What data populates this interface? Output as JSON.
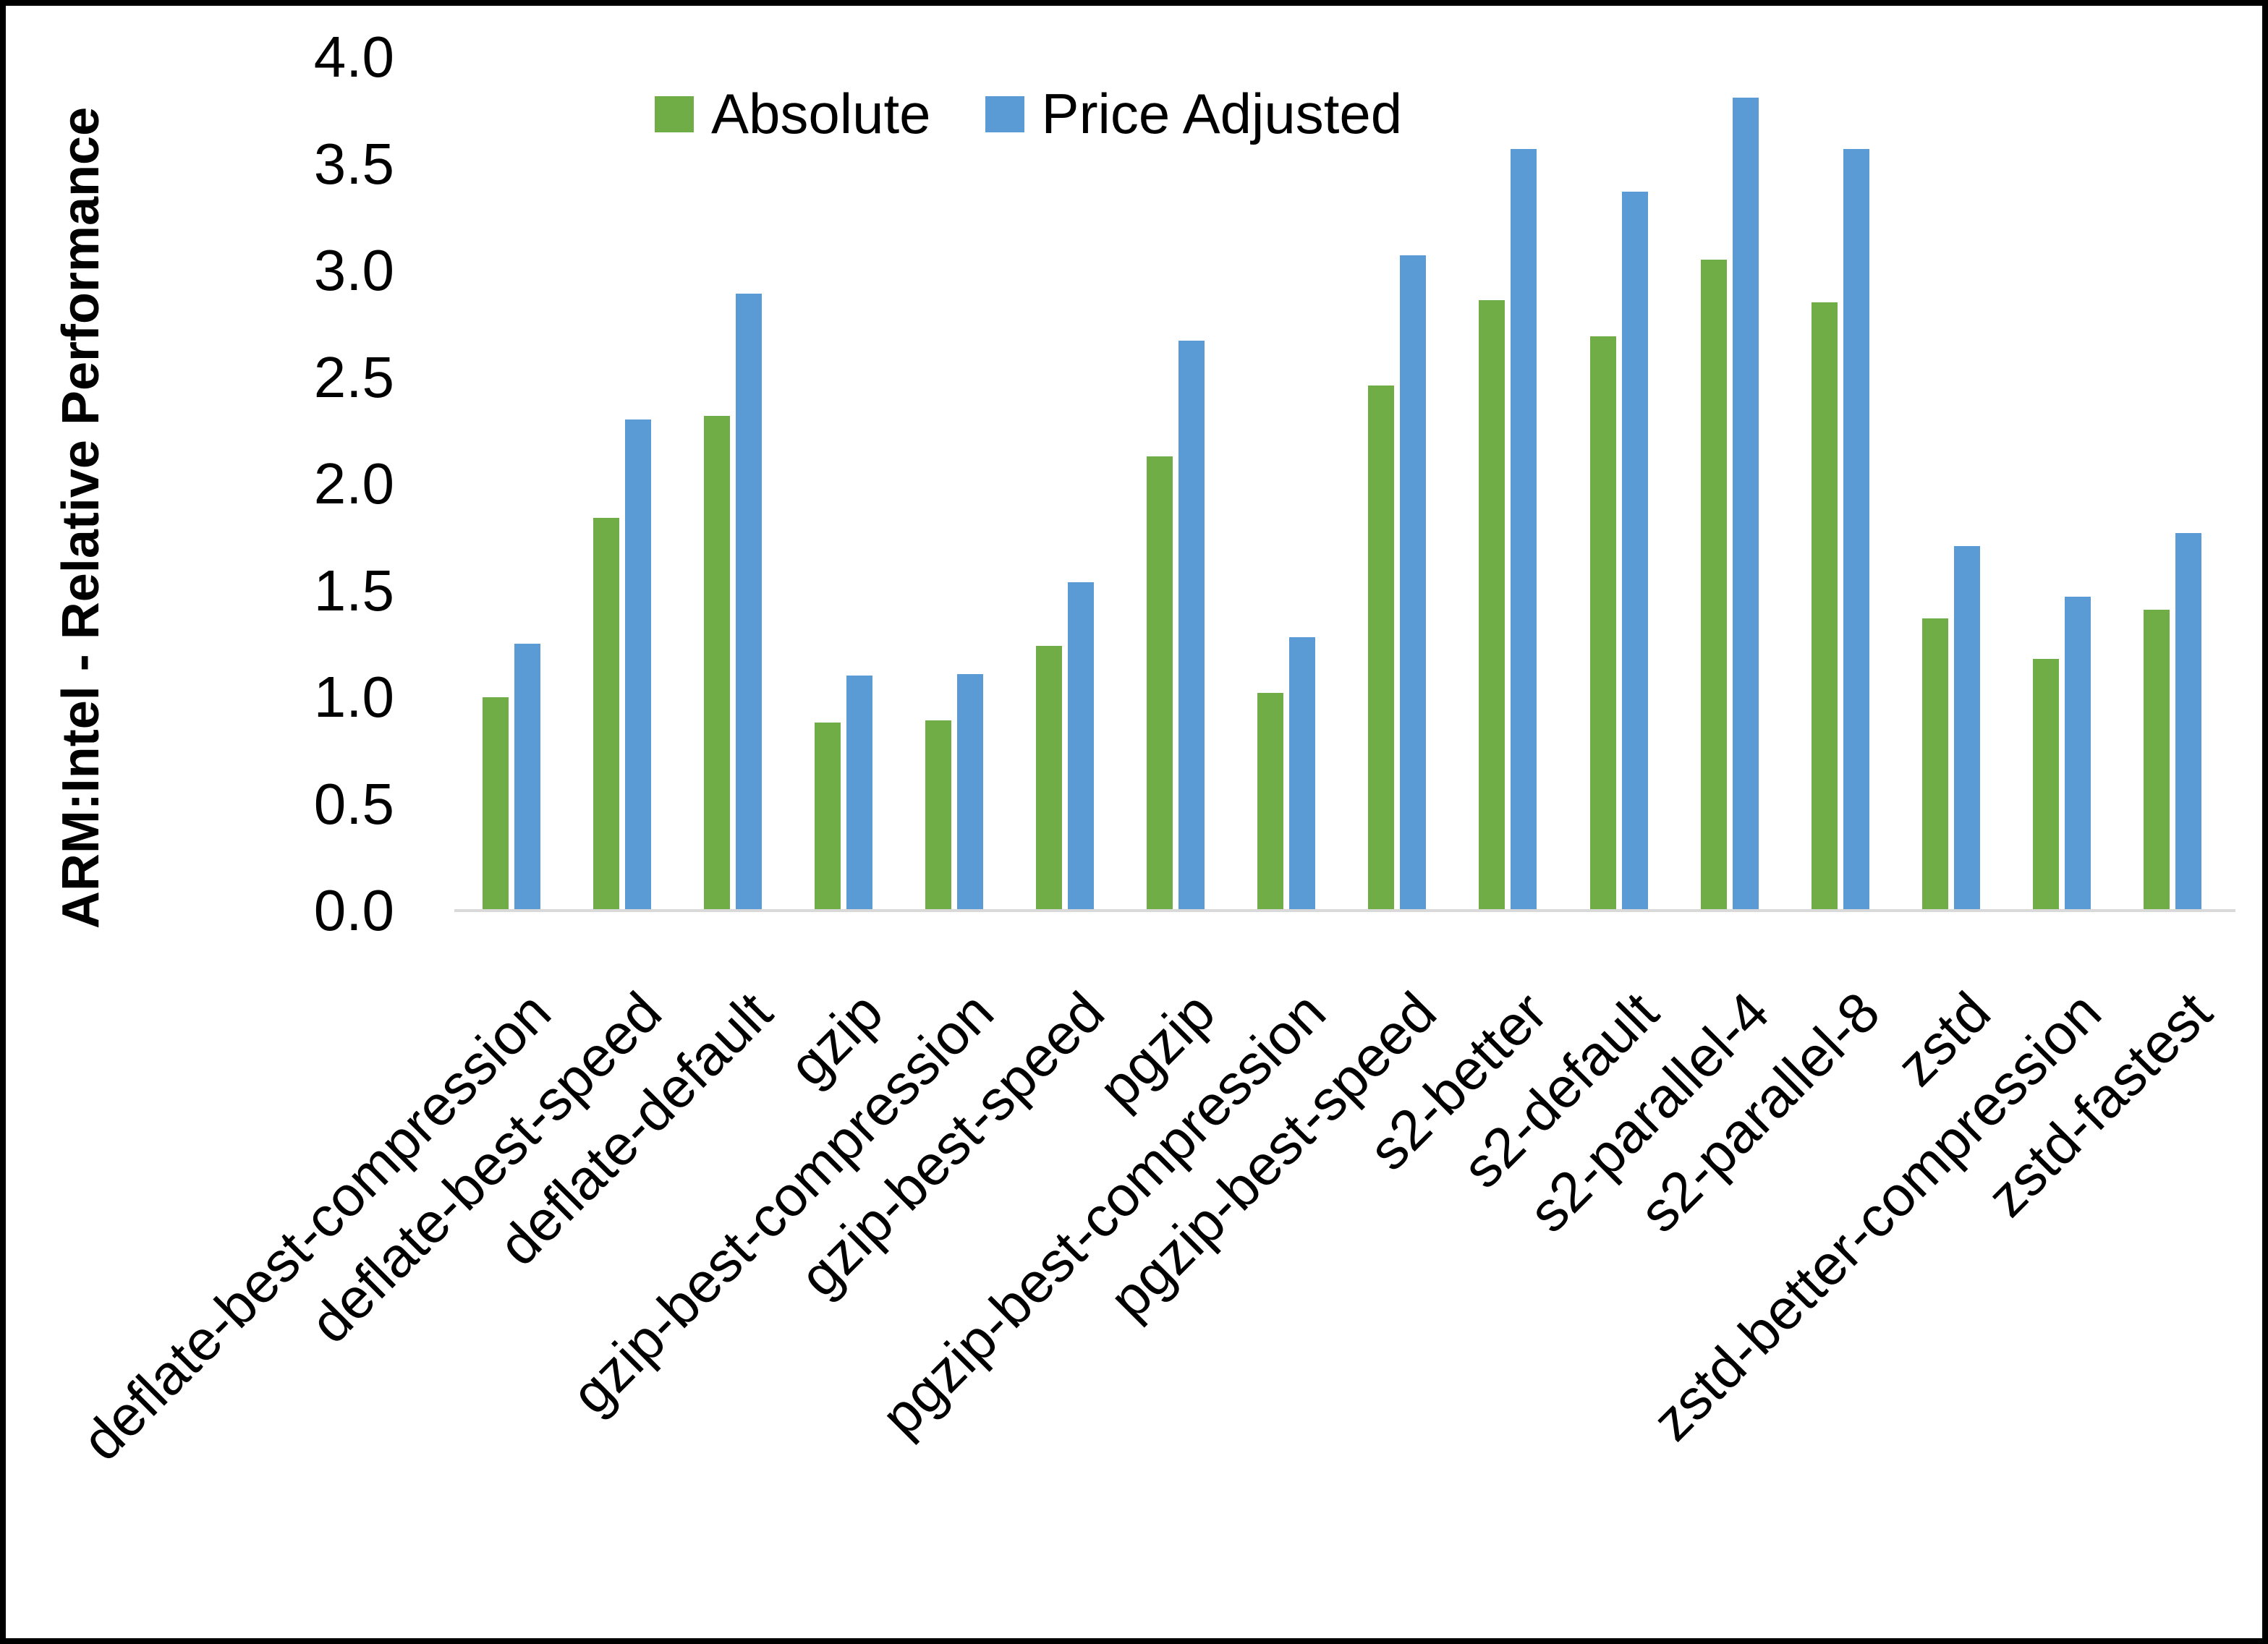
{
  "chart_data": {
    "type": "bar",
    "title": "",
    "ylabel": "ARM:Intel - Relative Performance",
    "xlabel": "",
    "ylim": [
      0.0,
      4.0
    ],
    "ytick_step": 0.5,
    "y_tick_labels": [
      "0.0",
      "0.5",
      "1.0",
      "1.5",
      "2.0",
      "2.5",
      "3.0",
      "3.5",
      "4.0"
    ],
    "grid": false,
    "legend_position": "top-center",
    "axis_line_color": "#d9d9d9",
    "text_color": "#000000",
    "frame_border_color": "#000000",
    "categories": [
      "deflate-best-compression",
      "deflate-best-speed",
      "deflate-default",
      "gzip",
      "gzip-best-compression",
      "gzip-best-speed",
      "pgzip",
      "pgzip-best-compression",
      "pgzip-best-speed",
      "s2-better",
      "s2-default",
      "s2-parallel-4",
      "s2-parallel-8",
      "zstd",
      "zstd-better-compression",
      "zstd-fastest"
    ],
    "series": [
      {
        "name": "Absolute",
        "color": "#70ad47",
        "values": [
          1.0,
          1.84,
          2.32,
          0.88,
          0.89,
          1.24,
          2.13,
          1.02,
          2.46,
          2.86,
          2.69,
          3.05,
          2.85,
          1.37,
          1.18,
          1.41
        ]
      },
      {
        "name": "Price Adjusted",
        "color": "#5b9bd5",
        "values": [
          1.25,
          2.3,
          2.89,
          1.1,
          1.11,
          1.54,
          2.67,
          1.28,
          3.07,
          3.57,
          3.37,
          3.81,
          3.57,
          1.71,
          1.47,
          1.77
        ]
      }
    ]
  }
}
